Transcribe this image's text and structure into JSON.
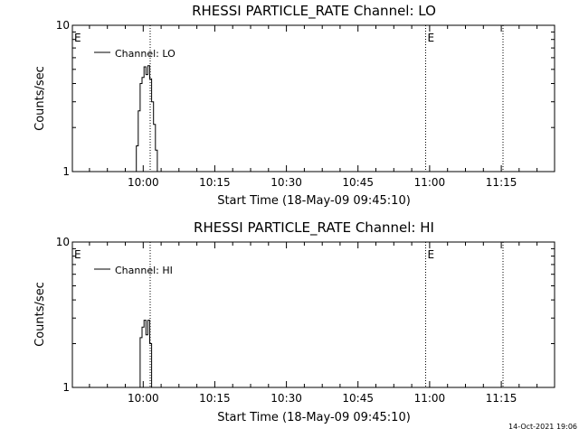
{
  "colors": {
    "background": "#ffffff",
    "foreground": "#000000"
  },
  "footer": {
    "timestamp": "14-Oct-2021 19:06"
  },
  "chart_data": [
    {
      "type": "line",
      "title": "RHESSI PARTICLE_RATE Channel: LO",
      "xlabel": "Start Time (18-May-09 09:45:10)",
      "ylabel": "Counts/sec",
      "y_scale": "log",
      "x_units": "minutes since 09:45:10",
      "xlim": [
        0,
        101
      ],
      "ylim": [
        1,
        10
      ],
      "x_ticks": [
        {
          "value": 14.83,
          "label": "10:00"
        },
        {
          "value": 29.83,
          "label": "10:15"
        },
        {
          "value": 44.83,
          "label": "10:30"
        },
        {
          "value": 59.83,
          "label": "10:45"
        },
        {
          "value": 74.83,
          "label": "11:00"
        },
        {
          "value": 89.83,
          "label": "11:15"
        }
      ],
      "y_ticks": [
        {
          "value": 1,
          "label": "1"
        },
        {
          "value": 10,
          "label": "10"
        }
      ],
      "series": [
        {
          "name": "Channel: LO",
          "x": [
            13.0,
            13.4,
            13.8,
            14.2,
            14.6,
            15.0,
            15.4,
            15.8,
            16.2,
            16.6,
            17.0,
            17.4,
            17.8,
            18.2,
            18.6
          ],
          "y": [
            1.0,
            1.5,
            2.6,
            4.0,
            4.4,
            5.2,
            4.6,
            5.3,
            4.3,
            3.0,
            2.1,
            1.4,
            1.0,
            1.0,
            1.0
          ]
        }
      ],
      "markers": [
        {
          "label": "E",
          "x": 0
        },
        {
          "label": "E",
          "x": 74.0
        }
      ],
      "vlines": [
        16.3,
        74.0,
        90.2
      ],
      "legend_position": "top-left"
    },
    {
      "type": "line",
      "title": "RHESSI PARTICLE_RATE Channel: HI",
      "xlabel": "Start Time (18-May-09 09:45:10)",
      "ylabel": "Counts/sec",
      "y_scale": "log",
      "x_units": "minutes since 09:45:10",
      "xlim": [
        0,
        101
      ],
      "ylim": [
        1,
        10
      ],
      "x_ticks": [
        {
          "value": 14.83,
          "label": "10:00"
        },
        {
          "value": 29.83,
          "label": "10:15"
        },
        {
          "value": 44.83,
          "label": "10:30"
        },
        {
          "value": 59.83,
          "label": "10:45"
        },
        {
          "value": 74.83,
          "label": "11:00"
        },
        {
          "value": 89.83,
          "label": "11:15"
        }
      ],
      "y_ticks": [
        {
          "value": 1,
          "label": "1"
        },
        {
          "value": 10,
          "label": "10"
        }
      ],
      "series": [
        {
          "name": "Channel: HI",
          "x": [
            13.8,
            14.2,
            14.6,
            15.0,
            15.4,
            15.8,
            16.2,
            16.6,
            17.0
          ],
          "y": [
            1.0,
            2.2,
            2.6,
            2.9,
            2.3,
            2.9,
            2.0,
            1.0,
            1.0
          ]
        }
      ],
      "markers": [
        {
          "label": "E",
          "x": 0
        },
        {
          "label": "E",
          "x": 74.0
        }
      ],
      "vlines": [
        16.3,
        74.0,
        90.2
      ],
      "legend_position": "top-left"
    }
  ]
}
